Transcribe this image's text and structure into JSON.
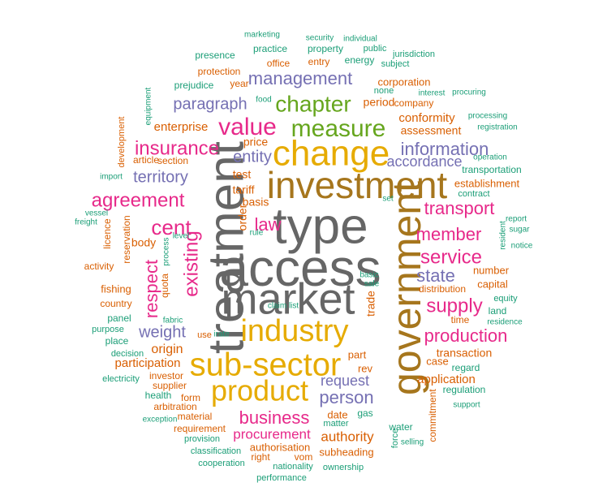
{
  "palette": {
    "teal": "#1b9e77",
    "orange": "#d95f02",
    "purple": "#7570b3",
    "magenta": "#e7298a",
    "green": "#66a61e",
    "gold": "#e6ab02",
    "brown": "#a6761d",
    "gray": "#666666"
  },
  "words": [
    {
      "text": "access",
      "color": "gray"
    },
    {
      "text": "type",
      "color": "gray"
    },
    {
      "text": "market",
      "color": "gray"
    },
    {
      "text": "treatment",
      "color": "gray"
    },
    {
      "text": "investment",
      "color": "brown"
    },
    {
      "text": "government",
      "color": "brown"
    },
    {
      "text": "change",
      "color": "gold"
    },
    {
      "text": "industry",
      "color": "gold"
    },
    {
      "text": "sub-sector",
      "color": "gold"
    },
    {
      "text": "product",
      "color": "gold"
    },
    {
      "text": "measure",
      "color": "green"
    },
    {
      "text": "chapter",
      "color": "green"
    },
    {
      "text": "value",
      "color": "magenta"
    },
    {
      "text": "agreement",
      "color": "magenta"
    },
    {
      "text": "insurance",
      "color": "magenta"
    },
    {
      "text": "cent",
      "color": "magenta"
    },
    {
      "text": "law",
      "color": "magenta"
    },
    {
      "text": "existing",
      "color": "magenta"
    },
    {
      "text": "respect",
      "color": "magenta"
    },
    {
      "text": "transport",
      "color": "magenta"
    },
    {
      "text": "member",
      "color": "magenta"
    },
    {
      "text": "service",
      "color": "magenta"
    },
    {
      "text": "supply",
      "color": "magenta"
    },
    {
      "text": "production",
      "color": "magenta"
    },
    {
      "text": "business",
      "color": "magenta"
    },
    {
      "text": "management",
      "color": "purple"
    },
    {
      "text": "paragraph",
      "color": "purple"
    },
    {
      "text": "territory",
      "color": "purple"
    },
    {
      "text": "entity",
      "color": "purple"
    },
    {
      "text": "information",
      "color": "purple"
    },
    {
      "text": "accordance",
      "color": "purple"
    },
    {
      "text": "state",
      "color": "purple"
    },
    {
      "text": "weight",
      "color": "purple"
    },
    {
      "text": "request",
      "color": "purple"
    },
    {
      "text": "person",
      "color": "purple"
    },
    {
      "text": "origin",
      "color": "orange"
    },
    {
      "text": "procurement",
      "color": "magenta"
    },
    {
      "text": "authority",
      "color": "orange"
    },
    {
      "text": "enterprise",
      "color": "orange"
    },
    {
      "text": "conformity",
      "color": "orange"
    },
    {
      "text": "period",
      "color": "orange"
    },
    {
      "text": "assessment",
      "color": "orange"
    },
    {
      "text": "participation",
      "color": "orange"
    },
    {
      "text": "transaction",
      "color": "orange"
    },
    {
      "text": "application",
      "color": "orange"
    },
    {
      "text": "price",
      "color": "orange"
    },
    {
      "text": "tariff",
      "color": "orange"
    },
    {
      "text": "basis",
      "color": "orange"
    },
    {
      "text": "test",
      "color": "orange"
    },
    {
      "text": "order",
      "color": "orange"
    },
    {
      "text": "body",
      "color": "orange"
    },
    {
      "text": "part",
      "color": "orange"
    },
    {
      "text": "rev",
      "color": "orange"
    },
    {
      "text": "date",
      "color": "orange"
    },
    {
      "text": "trade",
      "color": "orange"
    },
    {
      "text": "transportation",
      "color": "teal"
    },
    {
      "text": "establishment",
      "color": "orange"
    },
    {
      "text": "contract",
      "color": "teal"
    },
    {
      "text": "corporation",
      "color": "orange"
    },
    {
      "text": "company",
      "color": "orange"
    },
    {
      "text": "protection",
      "color": "orange"
    },
    {
      "text": "office",
      "color": "orange"
    },
    {
      "text": "entry",
      "color": "orange"
    },
    {
      "text": "energy",
      "color": "teal"
    },
    {
      "text": "subject",
      "color": "teal"
    },
    {
      "text": "year",
      "color": "orange"
    },
    {
      "text": "presence",
      "color": "teal"
    },
    {
      "text": "practice",
      "color": "teal"
    },
    {
      "text": "property",
      "color": "teal"
    },
    {
      "text": "public",
      "color": "teal"
    },
    {
      "text": "jurisdiction",
      "color": "teal"
    },
    {
      "text": "marketing",
      "color": "teal"
    },
    {
      "text": "security",
      "color": "teal"
    },
    {
      "text": "individual",
      "color": "teal"
    },
    {
      "text": "prejudice",
      "color": "teal"
    },
    {
      "text": "none",
      "color": "teal"
    },
    {
      "text": "interest",
      "color": "teal"
    },
    {
      "text": "procuring",
      "color": "teal"
    },
    {
      "text": "processing",
      "color": "teal"
    },
    {
      "text": "registration",
      "color": "teal"
    },
    {
      "text": "operation",
      "color": "teal"
    },
    {
      "text": "equipment",
      "color": "teal"
    },
    {
      "text": "development",
      "color": "orange"
    },
    {
      "text": "article",
      "color": "orange"
    },
    {
      "text": "section",
      "color": "orange"
    },
    {
      "text": "import",
      "color": "teal"
    },
    {
      "text": "vessel",
      "color": "teal"
    },
    {
      "text": "freight",
      "color": "teal"
    },
    {
      "text": "licence",
      "color": "orange"
    },
    {
      "text": "reservation",
      "color": "orange"
    },
    {
      "text": "activity",
      "color": "orange"
    },
    {
      "text": "fishing",
      "color": "orange"
    },
    {
      "text": "country",
      "color": "orange"
    },
    {
      "text": "quota",
      "color": "orange"
    },
    {
      "text": "process",
      "color": "teal"
    },
    {
      "text": "level",
      "color": "teal"
    },
    {
      "text": "rule",
      "color": "teal"
    },
    {
      "text": "set",
      "color": "teal"
    },
    {
      "text": "report",
      "color": "teal"
    },
    {
      "text": "sugar",
      "color": "teal"
    },
    {
      "text": "resident",
      "color": "teal"
    },
    {
      "text": "notice",
      "color": "teal"
    },
    {
      "text": "number",
      "color": "orange"
    },
    {
      "text": "capital",
      "color": "orange"
    },
    {
      "text": "distribution",
      "color": "orange"
    },
    {
      "text": "equity",
      "color": "teal"
    },
    {
      "text": "land",
      "color": "teal"
    },
    {
      "text": "residence",
      "color": "teal"
    },
    {
      "text": "time",
      "color": "orange"
    },
    {
      "text": "case",
      "color": "orange"
    },
    {
      "text": "regard",
      "color": "teal"
    },
    {
      "text": "regulation",
      "color": "teal"
    },
    {
      "text": "support",
      "color": "teal"
    },
    {
      "text": "commitment",
      "color": "orange"
    },
    {
      "text": "selling",
      "color": "teal"
    },
    {
      "text": "water",
      "color": "teal"
    },
    {
      "text": "force",
      "color": "teal"
    },
    {
      "text": "gas",
      "color": "teal"
    },
    {
      "text": "matter",
      "color": "teal"
    },
    {
      "text": "subheading",
      "color": "orange"
    },
    {
      "text": "vom",
      "color": "orange"
    },
    {
      "text": "ownership",
      "color": "teal"
    },
    {
      "text": "nationality",
      "color": "teal"
    },
    {
      "text": "performance",
      "color": "teal"
    },
    {
      "text": "right",
      "color": "orange"
    },
    {
      "text": "authorisation",
      "color": "orange"
    },
    {
      "text": "cooperation",
      "color": "teal"
    },
    {
      "text": "classification",
      "color": "teal"
    },
    {
      "text": "provision",
      "color": "teal"
    },
    {
      "text": "requirement",
      "color": "orange"
    },
    {
      "text": "material",
      "color": "orange"
    },
    {
      "text": "exception",
      "color": "teal"
    },
    {
      "text": "arbitration",
      "color": "orange"
    },
    {
      "text": "form",
      "color": "orange"
    },
    {
      "text": "health",
      "color": "teal"
    },
    {
      "text": "supplier",
      "color": "orange"
    },
    {
      "text": "investor",
      "color": "orange"
    },
    {
      "text": "electricity",
      "color": "teal"
    },
    {
      "text": "decision",
      "color": "teal"
    },
    {
      "text": "place",
      "color": "teal"
    },
    {
      "text": "purpose",
      "color": "teal"
    },
    {
      "text": "panel",
      "color": "teal"
    },
    {
      "text": "fabric",
      "color": "teal"
    },
    {
      "text": "use",
      "color": "orange"
    },
    {
      "text": "claim list",
      "color": "teal"
    },
    {
      "text": "sale",
      "color": "teal"
    },
    {
      "text": "basic",
      "color": "teal"
    },
    {
      "text": "food",
      "color": "teal"
    },
    {
      "text": "irate",
      "color": "teal"
    }
  ]
}
